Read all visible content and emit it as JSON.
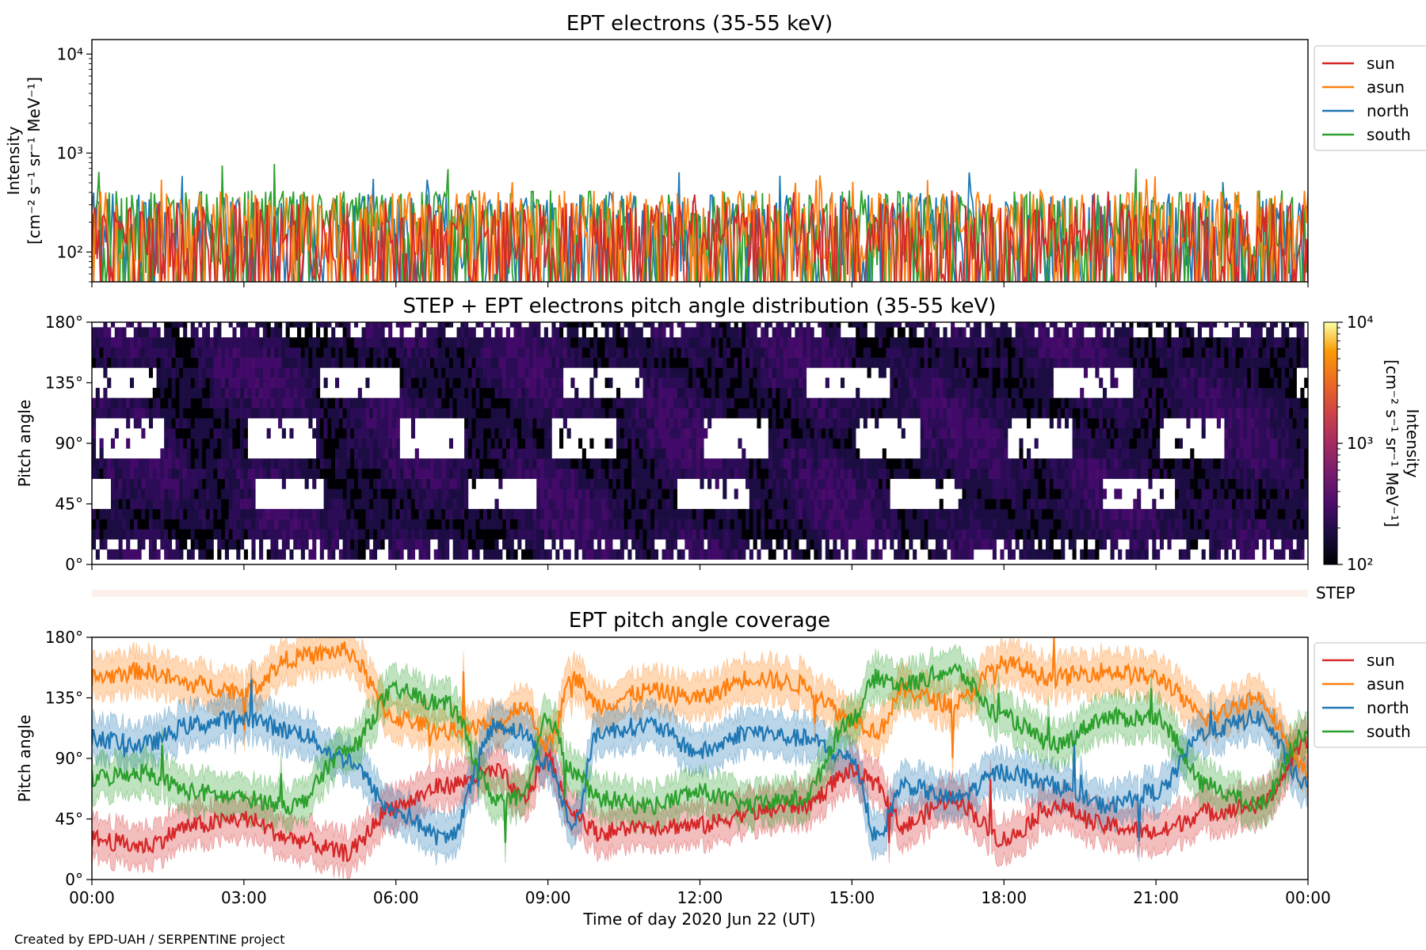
{
  "chart_data": [
    {
      "type": "line",
      "title": "EPT electrons (35-55 keV)",
      "ylabel_line1": "Intensity",
      "ylabel_line2": "[cm⁻² s⁻¹ sr⁻¹ MeV⁻¹]",
      "yscale": "log",
      "ylim": [
        50,
        14000
      ],
      "yticks": [
        {
          "value": 100,
          "label": "10²"
        },
        {
          "value": 1000,
          "label": "10³"
        },
        {
          "value": 10000,
          "label": "10⁴"
        }
      ],
      "xlim_hours": [
        0,
        24
      ],
      "legend_position": "outside-right-top",
      "series": [
        {
          "name": "sun",
          "color": "#d62728",
          "typical_range": [
            50,
            320
          ],
          "peak": 420
        },
        {
          "name": "asun",
          "color": "#ff7f0e",
          "typical_range": [
            80,
            420
          ],
          "peak": 620
        },
        {
          "name": "north",
          "color": "#1f77b4",
          "typical_range": [
            60,
            400
          ],
          "peak": 650
        },
        {
          "name": "south",
          "color": "#2ca02c",
          "typical_range": [
            60,
            420
          ],
          "peak": 800
        }
      ]
    },
    {
      "type": "heatmap",
      "title": "STEP + EPT electrons pitch angle distribution (35-55 keV)",
      "ylabel": "Pitch angle",
      "ylim": [
        0,
        180
      ],
      "yticks": [
        {
          "value": 0,
          "label": "0°"
        },
        {
          "value": 45,
          "label": "45°"
        },
        {
          "value": 90,
          "label": "90°"
        },
        {
          "value": 135,
          "label": "135°"
        },
        {
          "value": 180,
          "label": "180°"
        }
      ],
      "xlim_hours": [
        0,
        24
      ],
      "colorbar": {
        "label_line1": "Intensity",
        "label_line2": "[cm⁻² s⁻¹ sr⁻¹ MeV⁻¹]",
        "scale": "log",
        "range": [
          100,
          10000
        ],
        "ticks": [
          {
            "value": 100,
            "label": "10²"
          },
          {
            "value": 1000,
            "label": "10³"
          },
          {
            "value": 10000,
            "label": "10⁴"
          }
        ],
        "colormap": "inferno"
      },
      "typical_intensity_range": [
        100,
        250
      ]
    },
    {
      "type": "bar",
      "label": "STEP",
      "color": "#fdf0eb"
    },
    {
      "type": "area",
      "title": "EPT pitch angle coverage",
      "ylabel": "Pitch angle",
      "xlabel": "Time of day 2020 Jun 22 (UT)",
      "ylim": [
        0,
        180
      ],
      "yticks": [
        {
          "value": 0,
          "label": "0°"
        },
        {
          "value": 45,
          "label": "45°"
        },
        {
          "value": 90,
          "label": "90°"
        },
        {
          "value": 135,
          "label": "135°"
        },
        {
          "value": 180,
          "label": "180°"
        }
      ],
      "xlim_hours": [
        0,
        24
      ],
      "xticks": [
        {
          "value": 0,
          "label": "00:00"
        },
        {
          "value": 3,
          "label": "03:00"
        },
        {
          "value": 6,
          "label": "06:00"
        },
        {
          "value": 9,
          "label": "09:00"
        },
        {
          "value": 12,
          "label": "12:00"
        },
        {
          "value": 15,
          "label": "15:00"
        },
        {
          "value": 18,
          "label": "18:00"
        },
        {
          "value": 21,
          "label": "21:00"
        },
        {
          "value": 24,
          "label": "00:00"
        }
      ],
      "legend_position": "outside-right-top",
      "band_halfwidth_deg": 15,
      "series": [
        {
          "name": "sun",
          "color": "#d62728",
          "x": [
            0,
            1,
            2,
            3,
            4,
            5,
            6,
            7,
            8,
            8.5,
            9,
            9.5,
            10,
            11,
            12,
            13,
            14,
            15,
            15.5,
            16,
            17,
            18,
            19,
            20,
            21,
            22,
            23,
            24
          ],
          "y": [
            30,
            25,
            40,
            45,
            30,
            20,
            55,
            70,
            80,
            60,
            90,
            50,
            35,
            40,
            40,
            50,
            55,
            80,
            70,
            40,
            60,
            30,
            55,
            40,
            35,
            50,
            55,
            100
          ]
        },
        {
          "name": "asun",
          "color": "#ff7f0e",
          "x": [
            0,
            1,
            2,
            3,
            4,
            5,
            6,
            7,
            8,
            8.5,
            9,
            9.5,
            10,
            11,
            12,
            13,
            14,
            15,
            15.5,
            16,
            17,
            18,
            19,
            20,
            21,
            22,
            23,
            24
          ],
          "y": [
            150,
            155,
            145,
            140,
            165,
            170,
            120,
            110,
            115,
            130,
            100,
            150,
            130,
            140,
            135,
            150,
            145,
            120,
            110,
            140,
            130,
            160,
            150,
            155,
            150,
            120,
            135,
            80
          ]
        },
        {
          "name": "north",
          "color": "#1f77b4",
          "x": [
            0,
            1,
            2,
            3,
            4,
            5,
            6,
            7,
            8,
            8.5,
            9,
            9.5,
            10,
            11,
            12,
            13,
            14,
            15,
            15.5,
            16,
            17,
            18,
            19,
            20,
            21,
            22,
            23,
            24
          ],
          "y": [
            105,
            100,
            115,
            120,
            110,
            90,
            50,
            30,
            115,
            110,
            85,
            40,
            110,
            115,
            95,
            110,
            105,
            90,
            30,
            70,
            60,
            80,
            70,
            55,
            65,
            110,
            120,
            70
          ]
        },
        {
          "name": "south",
          "color": "#2ca02c",
          "x": [
            0,
            1,
            2,
            3,
            4,
            5,
            6,
            7,
            8,
            8.5,
            9,
            9.5,
            10,
            11,
            12,
            13,
            14,
            15,
            15.5,
            16,
            17,
            18,
            19,
            20,
            21,
            22,
            23,
            24
          ],
          "y": [
            75,
            80,
            65,
            60,
            55,
            95,
            140,
            130,
            60,
            60,
            120,
            80,
            60,
            55,
            65,
            55,
            60,
            120,
            150,
            145,
            155,
            120,
            100,
            120,
            120,
            70,
            55,
            110
          ]
        }
      ]
    }
  ],
  "footer": "Created by EPD-UAH / SERPENTINE project"
}
